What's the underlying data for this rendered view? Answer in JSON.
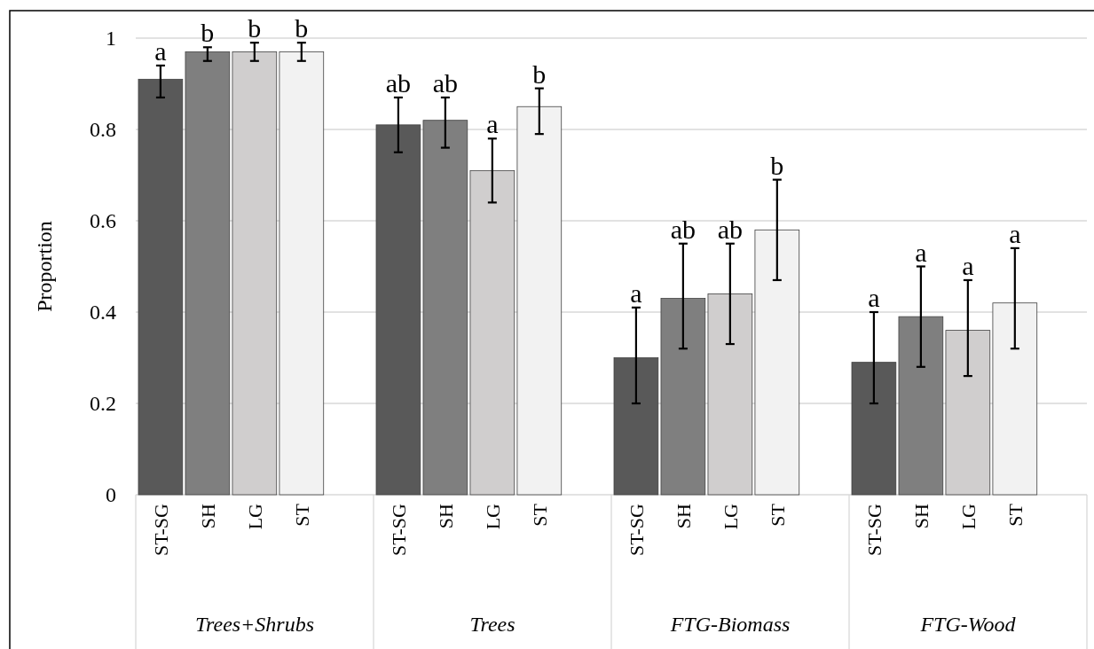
{
  "chart_data": {
    "type": "bar",
    "ylabel": "Proportion",
    "categories": [
      "Trees+Shrubs",
      "Trees",
      "FTG-Biomass",
      "FTG-Wood"
    ],
    "series": [
      {
        "name": "ST-SG",
        "color": "#595959",
        "values": [
          0.91,
          0.81,
          0.3,
          0.29
        ],
        "errors": [
          [
            0.87,
            0.94
          ],
          [
            0.75,
            0.87
          ],
          [
            0.2,
            0.41
          ],
          [
            0.2,
            0.4
          ]
        ]
      },
      {
        "name": "SH",
        "color": "#7f7f7f",
        "values": [
          0.97,
          0.82,
          0.43,
          0.39
        ],
        "errors": [
          [
            0.95,
            0.98
          ],
          [
            0.76,
            0.87
          ],
          [
            0.32,
            0.55
          ],
          [
            0.28,
            0.5
          ]
        ]
      },
      {
        "name": "LG",
        "color": "#d0cece",
        "values": [
          0.97,
          0.71,
          0.44,
          0.36
        ],
        "errors": [
          [
            0.95,
            0.99
          ],
          [
            0.64,
            0.78
          ],
          [
            0.33,
            0.55
          ],
          [
            0.26,
            0.47
          ]
        ]
      },
      {
        "name": "ST",
        "color": "#f2f2f2",
        "values": [
          0.97,
          0.85,
          0.58,
          0.42
        ],
        "errors": [
          [
            0.95,
            0.99
          ],
          [
            0.79,
            0.89
          ],
          [
            0.47,
            0.69
          ],
          [
            0.32,
            0.54
          ]
        ]
      }
    ],
    "ylim": [
      0,
      1
    ],
    "yticks": [
      0,
      0.2,
      0.4,
      0.6,
      0.8,
      1
    ],
    "grid": "y",
    "annotations": [
      "a",
      "b",
      "b",
      "b",
      "ab",
      "ab",
      "a",
      "b",
      "a",
      "ab",
      "ab",
      "b",
      "a",
      "a",
      "a",
      "a"
    ]
  }
}
